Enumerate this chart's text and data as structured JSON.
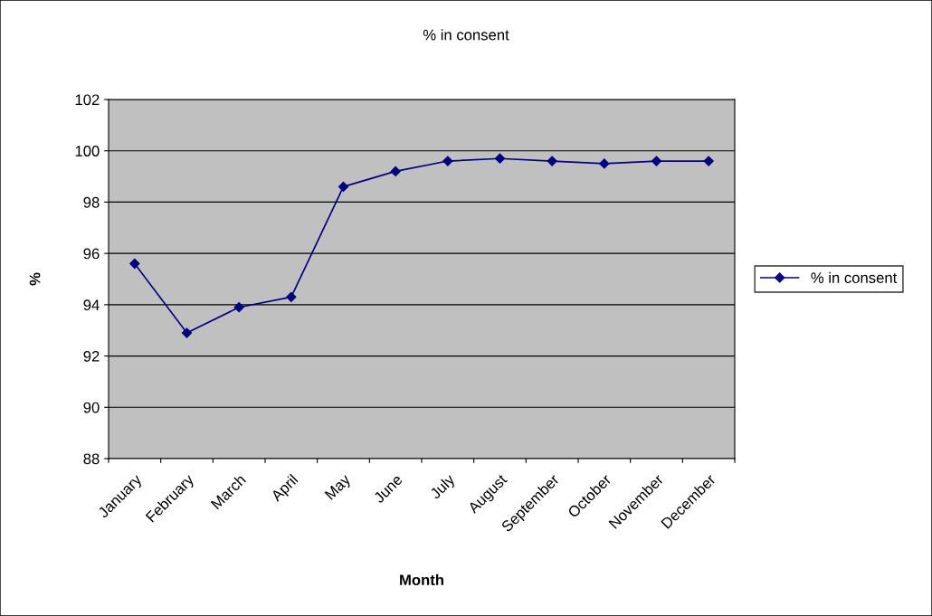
{
  "chart_data": {
    "type": "line",
    "title": "% in consent",
    "xlabel": "Month",
    "ylabel": "%",
    "categories": [
      "January",
      "February",
      "March",
      "April",
      "May",
      "June",
      "July",
      "August",
      "September",
      "October",
      "November",
      "December"
    ],
    "series": [
      {
        "name": "% in consent",
        "color": "#000080",
        "values": [
          95.6,
          92.9,
          93.9,
          94.3,
          98.6,
          99.2,
          99.6,
          99.7,
          99.6,
          99.5,
          99.6,
          99.6
        ]
      }
    ],
    "ylim": [
      88,
      102
    ],
    "yticks": [
      88,
      90,
      92,
      94,
      96,
      98,
      100,
      102
    ],
    "grid": "y",
    "legend": "right",
    "marker": "diamond",
    "line_style": "solid"
  }
}
